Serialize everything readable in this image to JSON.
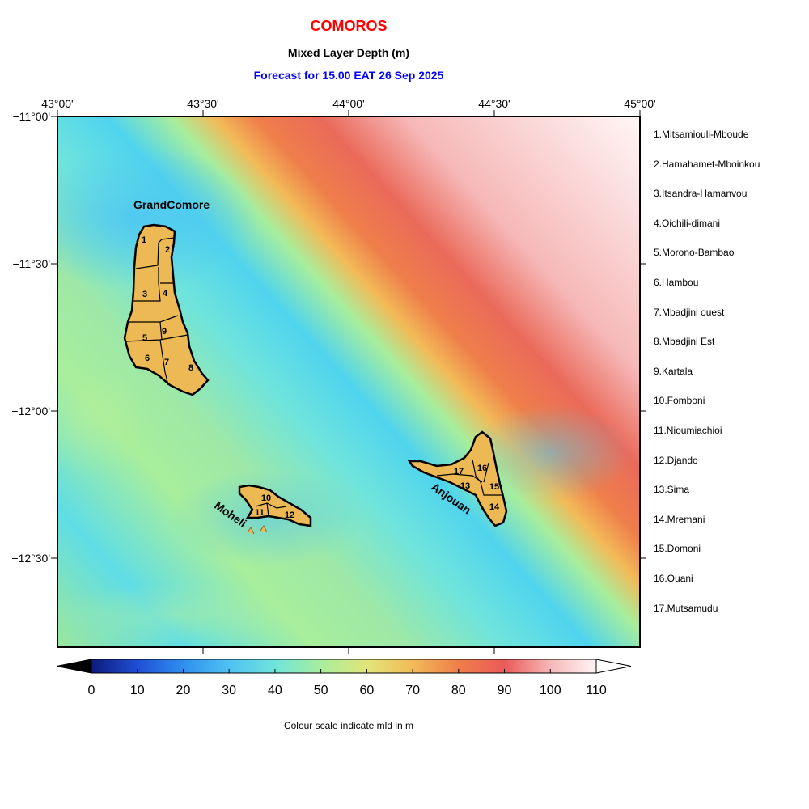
{
  "title": "COMOROS",
  "subtitle": "Mixed Layer Depth (m)",
  "forecast": "Forecast for  15.00 EAT 26 Sep 2025",
  "colors": {
    "title": "#ff0000",
    "forecast": "#0000ff",
    "island_fill": "#ecb955"
  },
  "lon_ticks": [
    "43°00'",
    "43°30'",
    "44°00'",
    "44°30'",
    "45°00'"
  ],
  "lat_ticks": [
    "−11°00'",
    "−11°30'",
    "−12°00'",
    "−12°30'"
  ],
  "island_labels": [
    "GrandComore",
    "Moheli",
    "Anjouan"
  ],
  "region_numbers": [
    "1",
    "2",
    "3",
    "4",
    "5",
    "6",
    "7",
    "8",
    "9",
    "10",
    "11",
    "12",
    "13",
    "14",
    "15",
    "16",
    "17"
  ],
  "regions": [
    "1.Mitsamiouli-Mboude",
    "2.Hamahamet-Mboinkou",
    "3.Itsandra-Hamanvou",
    "4.Oichili-dimani",
    "5.Morono-Bambao",
    "6.Hambou",
    "7.Mbadjini ouest",
    "8.Mbadjini Est",
    "9.Kartala",
    "10.Fomboni",
    "11.Nioumiachioi",
    "12.Djando",
    "13.Sima",
    "14.Mremani",
    "15.Domoni",
    "16.Ouani",
    "17.Mutsamudu"
  ],
  "colorbar": {
    "ticks": [
      "0",
      "10",
      "20",
      "30",
      "40",
      "50",
      "60",
      "70",
      "80",
      "90",
      "100",
      "110"
    ],
    "colors": [
      "#0d1b7a",
      "#1f4fd6",
      "#2f8ff0",
      "#4fc2f2",
      "#6fe4dc",
      "#a8ee9c",
      "#e2e57a",
      "#f2ba58",
      "#ef7e4a",
      "#ea5a58",
      "#f6b8b8",
      "#fff5f5"
    ],
    "caption": "Colour scale indicate mld in m"
  }
}
